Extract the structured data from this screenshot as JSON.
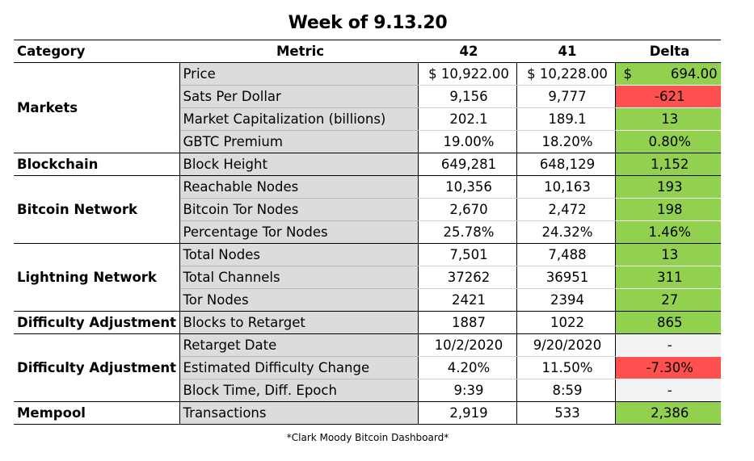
{
  "title": "Week of 9.13.20",
  "headers": {
    "category": "Category",
    "metric": "Metric",
    "col1": "42",
    "col2": "41",
    "delta": "Delta"
  },
  "groups": [
    {
      "category": "Markets",
      "rows": [
        {
          "metric": "Price",
          "v1": "$ 10,922.00",
          "v2": "$ 10,228.00",
          "delta_currency": "$",
          "delta": "694.00",
          "status": "pos"
        },
        {
          "metric": "Sats Per Dollar",
          "v1": "9,156",
          "v2": "9,777",
          "delta": "-621",
          "status": "neg"
        },
        {
          "metric": "Market Capitalization (billions)",
          "v1": "202.1",
          "v2": "189.1",
          "delta": "13",
          "status": "pos"
        },
        {
          "metric": "GBTC Premium",
          "v1": "19.00%",
          "v2": "18.20%",
          "delta": "0.80%",
          "status": "pos"
        }
      ]
    },
    {
      "category": "Blockchain",
      "rows": [
        {
          "metric": "Block Height",
          "v1": "649,281",
          "v2": "648,129",
          "delta": "1,152",
          "status": "pos"
        }
      ]
    },
    {
      "category": "Bitcoin Network",
      "rows": [
        {
          "metric": "Reachable Nodes",
          "v1": "10,356",
          "v2": "10,163",
          "delta": "193",
          "status": "pos"
        },
        {
          "metric": "Bitcoin Tor Nodes",
          "v1": "2,670",
          "v2": "2,472",
          "delta": "198",
          "status": "pos"
        },
        {
          "metric": "Percentage Tor Nodes",
          "v1": "25.78%",
          "v2": "24.32%",
          "delta": "1.46%",
          "status": "pos"
        }
      ]
    },
    {
      "category": "Lightning Network",
      "rows": [
        {
          "metric": "Total Nodes",
          "v1": "7,501",
          "v2": "7,488",
          "delta": "13",
          "status": "pos"
        },
        {
          "metric": "Total Channels",
          "v1": "37262",
          "v2": "36951",
          "delta": "311",
          "status": "pos"
        },
        {
          "metric": "Tor Nodes",
          "v1": "2421",
          "v2": "2394",
          "delta": "27",
          "status": "pos"
        }
      ]
    },
    {
      "category": "Difficulty Adjustment",
      "rows": [
        {
          "metric": "Blocks to Retarget",
          "v1": "1887",
          "v2": "1022",
          "delta": "865",
          "status": "pos"
        }
      ]
    },
    {
      "category": "Difficulty Adjustment",
      "rows": [
        {
          "metric": "Retarget Date",
          "v1": "10/2/2020",
          "v2": "9/20/2020",
          "delta": "-",
          "status": "neu"
        },
        {
          "metric": "Estimated Difficulty Change",
          "v1": "4.20%",
          "v2": "11.50%",
          "delta": "-7.30%",
          "status": "neg"
        },
        {
          "metric": "Block Time, Diff. Epoch",
          "v1": "9:39",
          "v2": "8:59",
          "delta": "-",
          "status": "neu"
        }
      ]
    },
    {
      "category": "Mempool",
      "rows": [
        {
          "metric": "Transactions",
          "v1": "2,919",
          "v2": "533",
          "delta": "2,386",
          "status": "pos"
        }
      ]
    }
  ],
  "footnote": "*Clark Moody Bitcoin Dashboard*",
  "colors": {
    "positive": "#92d050",
    "negative": "#ff5050",
    "neutral": "#f2f2f2",
    "metric_bg": "#dcdcdc"
  }
}
